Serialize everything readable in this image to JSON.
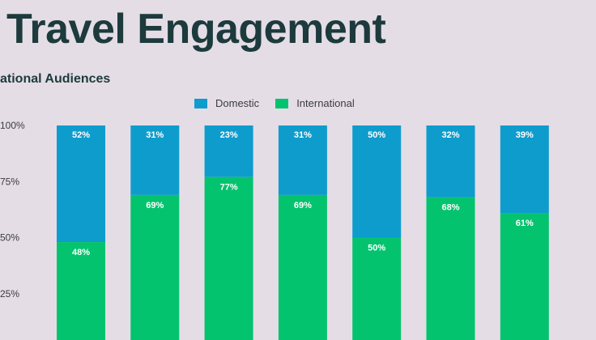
{
  "slide": {
    "title": "Travel Engagement",
    "subtitle": "ational Audiences"
  },
  "colors": {
    "domestic": "#0e9ccd",
    "international": "#04c36e",
    "background": "#e4dde6",
    "title": "#1d3a3c"
  },
  "chart_data": {
    "type": "bar",
    "stacked": true,
    "title": "",
    "xlabel": "",
    "ylabel": "",
    "ylim": [
      0,
      100
    ],
    "yticks": [
      "25%",
      "50%",
      "75%",
      "100%"
    ],
    "ytick_values": [
      25,
      50,
      75,
      100
    ],
    "legend": "top-center",
    "categories": [
      "",
      "",
      "",
      "",
      "",
      "",
      ""
    ],
    "series": [
      {
        "name": "International",
        "values": [
          48,
          69,
          77,
          69,
          50,
          68,
          61
        ],
        "labels": [
          "48%",
          "69%",
          "77%",
          "69%",
          "50%",
          "68%",
          "61%"
        ]
      },
      {
        "name": "Domestic",
        "values": [
          52,
          31,
          23,
          31,
          50,
          32,
          39
        ],
        "labels": [
          "52%",
          "31%",
          "23%",
          "31%",
          "50%",
          "32%",
          "39%"
        ]
      }
    ]
  }
}
